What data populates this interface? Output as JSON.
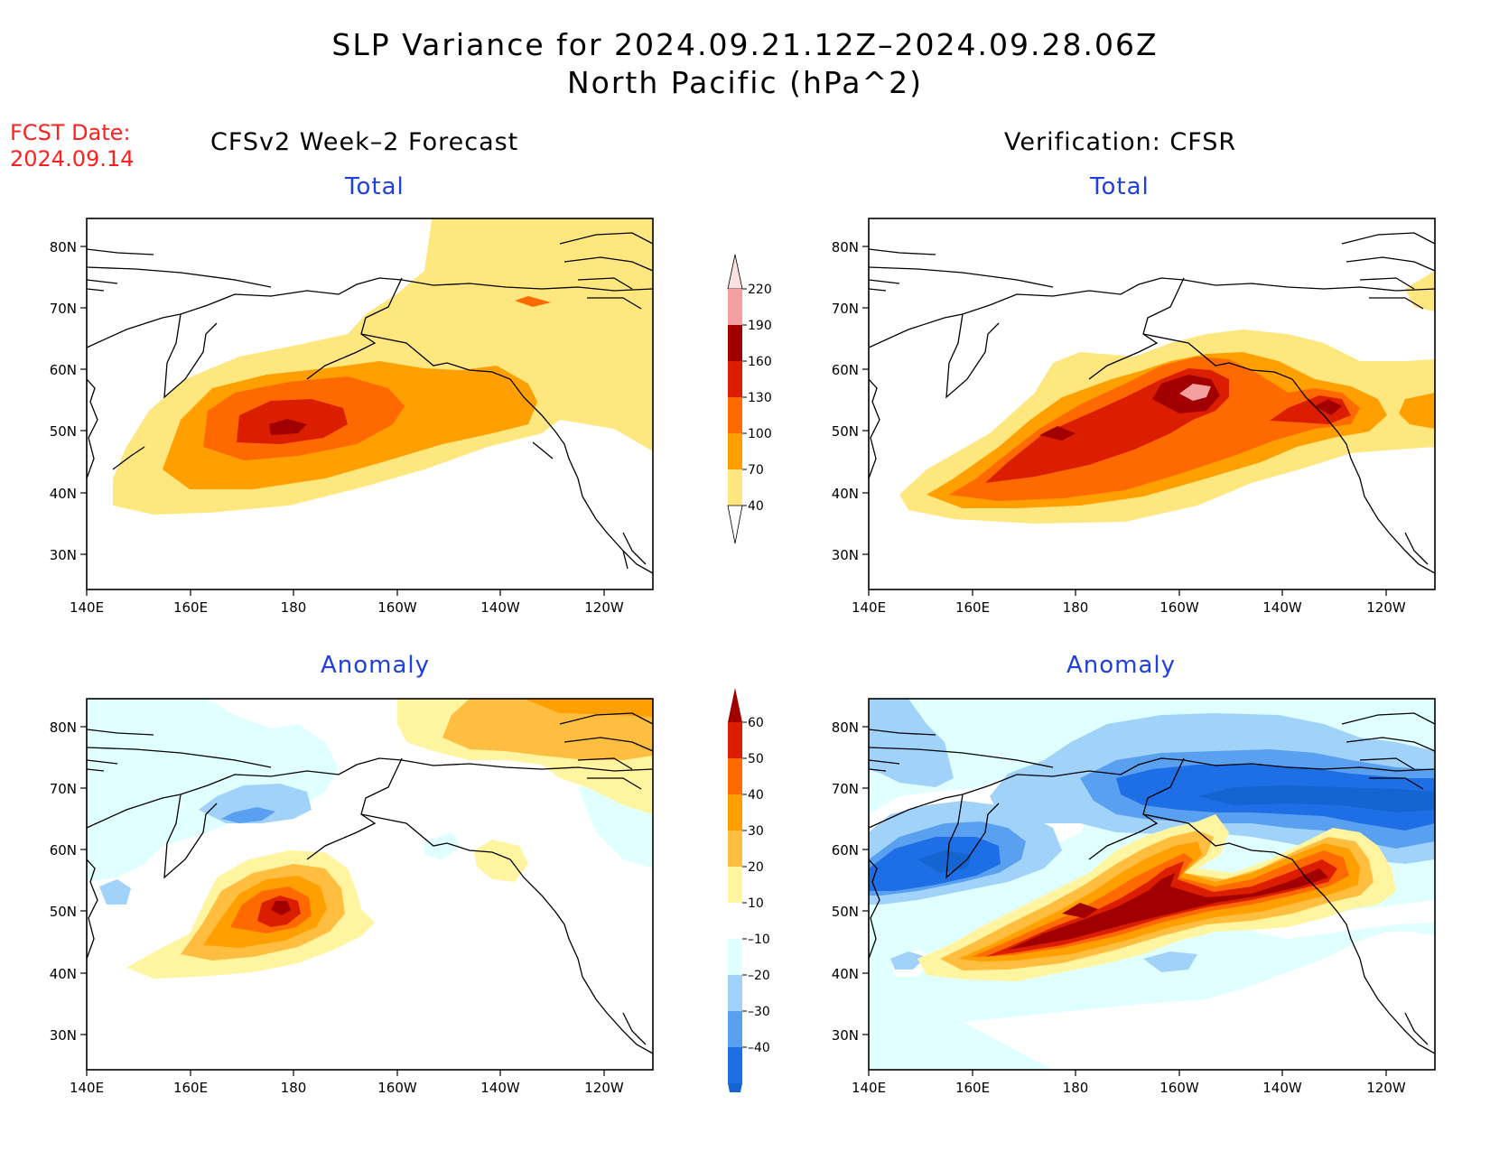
{
  "header": {
    "title_line1": "SLP Variance for 2024.09.21.12Z–2024.09.28.06Z",
    "title_line2": "North Pacific (hPa^2)",
    "fcst_label": "FCST Date:",
    "fcst_date": "2024.09.14",
    "left_column_title": "CFSv2 Week–2 Forecast",
    "right_column_title": "Verification: CFSR"
  },
  "panels": {
    "top_left_title": "Total",
    "top_right_title": "Total",
    "bottom_left_title": "Anomaly",
    "bottom_right_title": "Anomaly"
  },
  "axes": {
    "lat_labels": [
      "80N",
      "70N",
      "60N",
      "50N",
      "40N",
      "30N"
    ],
    "lon_labels": [
      "140E",
      "160E",
      "180",
      "160W",
      "140W",
      "120W"
    ]
  },
  "colorbars": {
    "total": {
      "levels": [
        "220",
        "190",
        "160",
        "130",
        "100",
        "70",
        "40"
      ],
      "colors": [
        "#fde0e0",
        "#f4a0a0",
        "#a00000",
        "#dc1e00",
        "#ff6a00",
        "#ffa000",
        "#ffe780"
      ]
    },
    "anomaly": {
      "levels": [
        "60",
        "50",
        "40",
        "30",
        "20",
        "10",
        "–10",
        "–20",
        "–30",
        "–40"
      ],
      "colors": [
        "#a00000",
        "#dc1e00",
        "#ff6a00",
        "#ffa000",
        "#ffbe40",
        "#fff5a0",
        "#ffffff",
        "#e0ffff",
        "#a0d2fa",
        "#5aa0f0",
        "#1e6ee6",
        "#1464d2"
      ]
    }
  }
}
